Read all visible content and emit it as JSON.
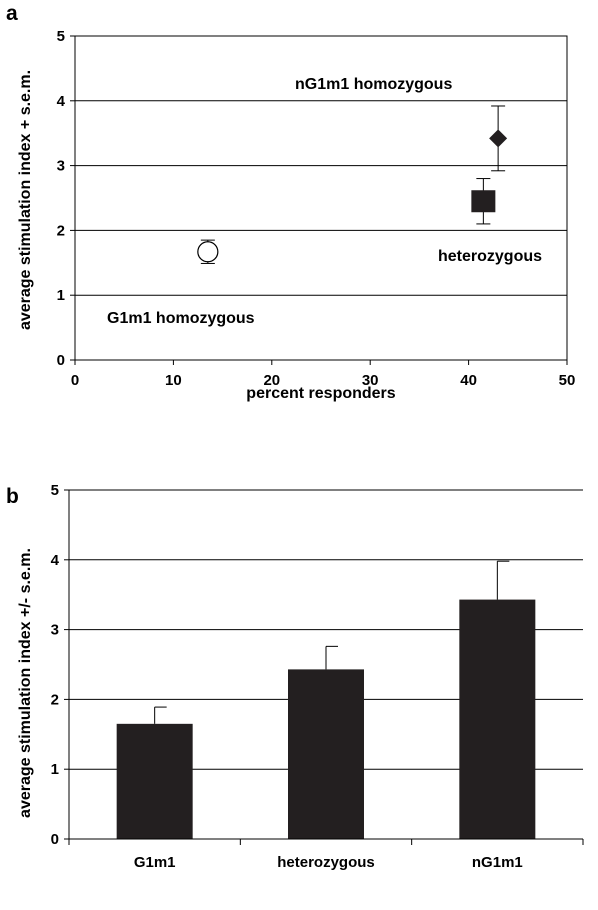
{
  "chart_data": [
    {
      "panel": "a",
      "type": "scatter",
      "xlabel": "percent responders",
      "ylabel": "average stimulation index + s.e.m.",
      "xlim": [
        0,
        50
      ],
      "ylim": [
        0,
        5
      ],
      "xticks": [
        0,
        10,
        20,
        30,
        40,
        50
      ],
      "yticks": [
        0,
        1,
        2,
        3,
        4,
        5
      ],
      "grid": "horizontal",
      "points": [
        {
          "label": "G1m1 homozygous",
          "x": 13.5,
          "y": 1.67,
          "sem": 0.18,
          "marker": "open-circle"
        },
        {
          "label": "heterozygous",
          "x": 41.5,
          "y": 2.45,
          "sem": 0.35,
          "marker": "filled-square"
        },
        {
          "label": "nG1m1 homozygous",
          "x": 43,
          "y": 3.42,
          "sem": 0.5,
          "marker": "filled-diamond"
        }
      ]
    },
    {
      "panel": "b",
      "type": "bar",
      "ylabel": "average stimulation index +/- s.e.m.",
      "ylim": [
        0,
        5
      ],
      "yticks": [
        0,
        1,
        2,
        3,
        4,
        5
      ],
      "grid": "horizontal",
      "categories": [
        "G1m1",
        "heterozygous",
        "nG1m1"
      ],
      "values": [
        1.65,
        2.43,
        3.43
      ],
      "errors": [
        0.24,
        0.33,
        0.55
      ],
      "bar_color": "#231f20"
    }
  ]
}
